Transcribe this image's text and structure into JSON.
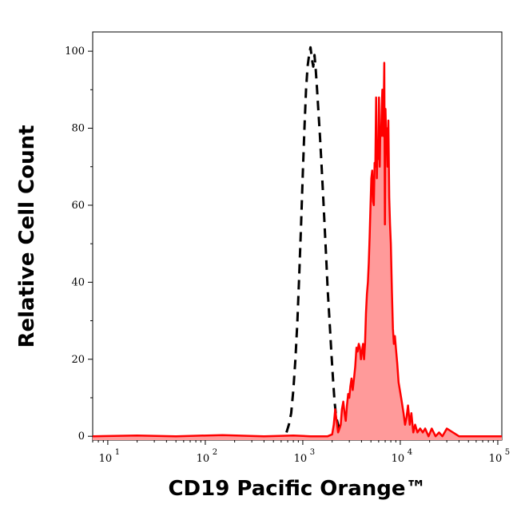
{
  "chart_data": {
    "type": "area",
    "xlabel": "CD19 Pacific Orange™",
    "ylabel": "Relative Cell Count",
    "xscale": "log",
    "xlim": [
      7,
      110000
    ],
    "ylim": [
      -1,
      105
    ],
    "x_ticks": [
      {
        "value": 10,
        "base": "10",
        "exp": "1"
      },
      {
        "value": 100,
        "base": "10",
        "exp": "2"
      },
      {
        "value": 1000,
        "base": "10",
        "exp": "3"
      },
      {
        "value": 10000,
        "base": "10",
        "exp": "4"
      },
      {
        "value": 100000,
        "base": "10",
        "exp": "5"
      }
    ],
    "y_ticks": [
      0,
      20,
      40,
      60,
      80,
      100
    ],
    "grid": false,
    "legend": "none",
    "series": [
      {
        "style": "dashed-line",
        "color": "#000000",
        "x": [
          680,
          720,
          760,
          800,
          840,
          880,
          920,
          960,
          1000,
          1040,
          1080,
          1120,
          1160,
          1200,
          1240,
          1280,
          1320,
          1360,
          1400,
          1450,
          1500,
          1560,
          1620,
          1680,
          1740,
          1800,
          1880,
          1960,
          2040,
          2120,
          2200,
          2300,
          2400,
          2500,
          2600,
          2700
        ],
        "y": [
          1,
          3,
          6,
          12,
          20,
          30,
          42,
          55,
          68,
          80,
          90,
          96,
          99,
          101,
          98,
          96,
          99,
          95,
          90,
          84,
          78,
          70,
          62,
          54,
          46,
          38,
          30,
          22,
          15,
          9,
          5,
          3,
          2,
          1,
          0.5,
          0
        ]
      },
      {
        "style": "filled",
        "color": "#ff0000",
        "fill": "#ff9a9a",
        "x": [
          7,
          20,
          50,
          150,
          400,
          800,
          1200,
          1800,
          2000,
          2080,
          2150,
          2220,
          2300,
          2380,
          2450,
          2520,
          2600,
          2680,
          2760,
          2840,
          2920,
          3000,
          3080,
          3160,
          3250,
          3350,
          3450,
          3550,
          3650,
          3750,
          3850,
          3950,
          4050,
          4150,
          4250,
          4350,
          4450,
          4550,
          4650,
          4750,
          4850,
          4950,
          5050,
          5150,
          5250,
          5350,
          5450,
          5550,
          5650,
          5750,
          5850,
          5950,
          6050,
          6150,
          6250,
          6350,
          6450,
          6550,
          6650,
          6750,
          6850,
          6950,
          7050,
          7150,
          7250,
          7400,
          7550,
          7700,
          7850,
          8000,
          8200,
          8400,
          8600,
          8800,
          9000,
          9300,
          9600,
          9900,
          10200,
          10500,
          10800,
          11200,
          11600,
          12000,
          12500,
          13000,
          13600,
          14200,
          15000,
          16000,
          17000,
          18000,
          19500,
          21000,
          23000,
          25000,
          27000,
          30000,
          40000,
          60000,
          80000,
          110000
        ],
        "y": [
          0,
          0.2,
          0,
          0.3,
          0,
          0.2,
          0,
          0,
          0.5,
          3,
          7,
          4,
          1,
          2,
          3,
          7,
          9,
          6,
          4,
          8,
          11,
          10,
          13,
          15,
          12,
          15,
          18,
          23,
          22,
          24,
          23,
          20,
          22,
          24,
          20,
          24,
          32,
          37,
          40,
          45,
          52,
          60,
          67,
          69,
          61,
          60,
          71,
          70,
          88,
          67,
          76,
          72,
          88,
          70,
          80,
          78,
          85,
          90,
          78,
          84,
          97,
          55,
          85,
          78,
          80,
          70,
          82,
          62,
          55,
          50,
          38,
          28,
          24,
          26,
          23,
          19,
          14,
          12,
          10,
          8,
          6,
          3,
          5,
          8,
          3,
          6,
          1,
          3,
          1,
          2,
          1,
          2,
          0,
          2,
          0,
          1,
          0,
          2,
          0,
          0,
          0,
          0
        ]
      }
    ]
  }
}
